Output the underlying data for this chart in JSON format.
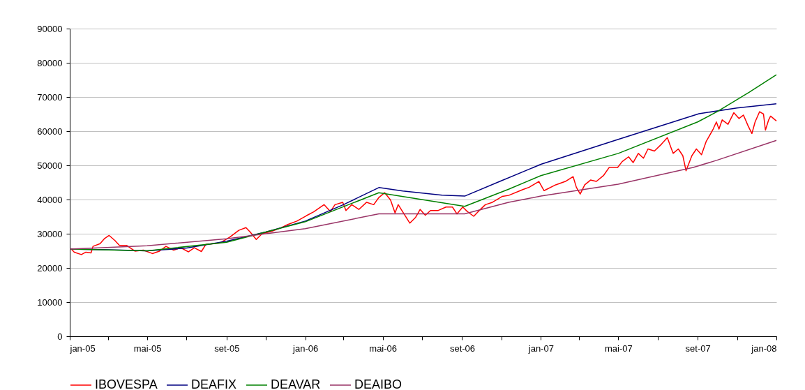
{
  "chart_data": {
    "type": "line",
    "xlim": [
      "2005-01-01",
      "2008-01-01"
    ],
    "xticks": [
      {
        "value": "2005-01-01",
        "label": "jan-05"
      },
      {
        "value": "2005-03-01",
        "label": null
      },
      {
        "value": "2005-05-01",
        "label": "mai-05"
      },
      {
        "value": "2005-07-01",
        "label": null
      },
      {
        "value": "2005-09-01",
        "label": "set-05"
      },
      {
        "value": "2005-11-01",
        "label": null
      },
      {
        "value": "2006-01-01",
        "label": "jan-06"
      },
      {
        "value": "2006-03-01",
        "label": null
      },
      {
        "value": "2006-05-01",
        "label": "mai-06"
      },
      {
        "value": "2006-07-01",
        "label": null
      },
      {
        "value": "2006-09-01",
        "label": "set-06"
      },
      {
        "value": "2006-11-01",
        "label": null
      },
      {
        "value": "2007-01-01",
        "label": "jan-07"
      },
      {
        "value": "2007-03-01",
        "label": null
      },
      {
        "value": "2007-05-01",
        "label": "mai-07"
      },
      {
        "value": "2007-07-01",
        "label": null
      },
      {
        "value": "2007-09-01",
        "label": "set-07"
      },
      {
        "value": "2007-11-01",
        "label": null
      },
      {
        "value": "2008-01-01",
        "label": "jan-08"
      }
    ],
    "ylim": [
      0,
      90000
    ],
    "yticks": [
      0,
      10000,
      20000,
      30000,
      40000,
      50000,
      60000,
      70000,
      80000,
      90000
    ],
    "grid": "y",
    "legend": "bottom",
    "series": [
      {
        "name": "IBOVESPA",
        "color": "#ff0000",
        "x": [
          "2005-01-03",
          "2005-01-08",
          "2005-01-19",
          "2005-01-26",
          "2005-02-03",
          "2005-02-06",
          "2005-02-17",
          "2005-02-24",
          "2005-03-03",
          "2005-03-12",
          "2005-03-19",
          "2005-03-30",
          "2005-04-12",
          "2005-04-25",
          "2005-05-09",
          "2005-05-20",
          "2005-05-30",
          "2005-06-11",
          "2005-06-22",
          "2005-07-04",
          "2005-07-13",
          "2005-07-24",
          "2005-07-31",
          "2005-08-22",
          "2005-09-06",
          "2005-09-20",
          "2005-10-01",
          "2005-10-08",
          "2005-10-17",
          "2005-10-26",
          "2005-11-10",
          "2005-11-24",
          "2005-12-05",
          "2005-12-19",
          "2006-01-03",
          "2006-01-14",
          "2006-01-30",
          "2006-02-09",
          "2006-02-16",
          "2006-02-28",
          "2006-03-05",
          "2006-03-14",
          "2006-03-25",
          "2006-04-06",
          "2006-04-17",
          "2006-04-25",
          "2006-05-04",
          "2006-05-13",
          "2006-05-20",
          "2006-05-25",
          "2006-06-03",
          "2006-06-12",
          "2006-06-21",
          "2006-06-28",
          "2006-07-06",
          "2006-07-14",
          "2006-07-26",
          "2006-08-07",
          "2006-08-17",
          "2006-08-24",
          "2006-09-02",
          "2006-09-09",
          "2006-09-19",
          "2006-09-26",
          "2006-10-07",
          "2006-10-18",
          "2006-11-02",
          "2006-11-12",
          "2006-12-04",
          "2006-12-14",
          "2006-12-29",
          "2007-01-06",
          "2007-01-24",
          "2007-02-08",
          "2007-02-20",
          "2007-02-25",
          "2007-03-03",
          "2007-03-10",
          "2007-03-19",
          "2007-03-28",
          "2007-04-08",
          "2007-04-17",
          "2007-04-30",
          "2007-05-07",
          "2007-05-17",
          "2007-05-24",
          "2007-06-01",
          "2007-06-09",
          "2007-06-16",
          "2007-06-26",
          "2007-07-07",
          "2007-07-16",
          "2007-07-21",
          "2007-07-25",
          "2007-08-02",
          "2007-08-09",
          "2007-08-14",
          "2007-08-23",
          "2007-08-30",
          "2007-09-07",
          "2007-09-14",
          "2007-09-25",
          "2007-09-30",
          "2007-10-04",
          "2007-10-09",
          "2007-10-18",
          "2007-10-27",
          "2007-11-04",
          "2007-11-11",
          "2007-11-18",
          "2007-11-24",
          "2007-11-29",
          "2007-12-06",
          "2007-12-12",
          "2007-12-15",
          "2007-12-20",
          "2007-12-23",
          "2008-01-01"
        ],
        "values": [
          25600,
          24600,
          23900,
          24600,
          24400,
          26300,
          27100,
          28600,
          29500,
          28000,
          26600,
          26600,
          24900,
          25200,
          24200,
          24900,
          26300,
          25200,
          25900,
          24700,
          25900,
          24800,
          26900,
          27300,
          29000,
          31000,
          31800,
          30400,
          28300,
          30000,
          30700,
          31700,
          32700,
          33700,
          35300,
          36400,
          38500,
          36500,
          38500,
          39200,
          36800,
          38500,
          37100,
          39200,
          38500,
          40600,
          42000,
          39900,
          36100,
          38500,
          35800,
          33100,
          34800,
          37100,
          35400,
          36800,
          36800,
          37800,
          37800,
          35800,
          37800,
          36500,
          35100,
          36500,
          38500,
          39200,
          40900,
          41200,
          42900,
          43600,
          45300,
          42600,
          44300,
          45300,
          46700,
          43600,
          41600,
          44300,
          45700,
          45300,
          47000,
          49400,
          49400,
          51100,
          52500,
          50800,
          53500,
          52100,
          54800,
          54200,
          56200,
          58100,
          55500,
          53500,
          54800,
          52800,
          48400,
          52800,
          54800,
          53100,
          56900,
          60600,
          62700,
          60600,
          63300,
          62000,
          65400,
          63700,
          64700,
          61600,
          59300,
          62700,
          65700,
          65000,
          60300,
          63300,
          64400,
          63000
        ]
      },
      {
        "name": "DEAFIX",
        "color": "#000080",
        "x": [
          "2005-01-01",
          "2005-03-01",
          "2005-05-01",
          "2005-07-01",
          "2005-09-01",
          "2005-11-01",
          "2006-01-01",
          "2006-03-01",
          "2006-04-25",
          "2006-06-01",
          "2006-08-01",
          "2006-09-05",
          "2006-11-01",
          "2007-01-01",
          "2007-05-01",
          "2007-09-03",
          "2007-11-01",
          "2008-01-01"
        ],
        "values": [
          25500,
          25300,
          25000,
          25800,
          27800,
          30500,
          33700,
          38500,
          43500,
          42500,
          41300,
          41000,
          45500,
          50300,
          57600,
          65100,
          66800,
          68000
        ]
      },
      {
        "name": "DEAVAR",
        "color": "#008000",
        "x": [
          "2005-01-01",
          "2005-05-01",
          "2005-09-01",
          "2006-01-01",
          "2006-04-25",
          "2006-09-05",
          "2006-11-12",
          "2007-01-01",
          "2007-05-01",
          "2007-09-01",
          "2007-10-01",
          "2007-11-20",
          "2008-01-01"
        ],
        "values": [
          25500,
          25000,
          27500,
          33500,
          42000,
          38000,
          43000,
          47000,
          53500,
          62700,
          65700,
          71400,
          76500
        ]
      },
      {
        "name": "DEAIBO",
        "color": "#993366",
        "x": [
          "2005-01-01",
          "2005-05-01",
          "2005-09-01",
          "2006-01-01",
          "2006-04-25",
          "2006-09-05",
          "2006-11-12",
          "2007-01-01",
          "2007-05-01",
          "2007-08-25",
          "2007-10-01",
          "2008-01-01"
        ],
        "values": [
          25500,
          26500,
          28500,
          31500,
          35800,
          35800,
          39200,
          41000,
          44500,
          49400,
          51500,
          57300
        ]
      }
    ]
  }
}
